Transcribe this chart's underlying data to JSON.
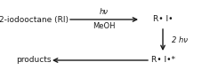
{
  "bg_color": "#ffffff",
  "text_color": "#1a1a1a",
  "arrow_color": "#1a1a1a",
  "label_top_left": "2-iodooctane (RI)",
  "label_top_right": "R• I•",
  "label_bottom_left": "products",
  "label_bottom_right": "R• I•*",
  "arrow_top_above": "hν",
  "arrow_top_below": "MeOH",
  "arrow_right_label": "2 hν",
  "font_size": 6.5,
  "label_font_size": 6.5,
  "small_font_size": 6.0
}
